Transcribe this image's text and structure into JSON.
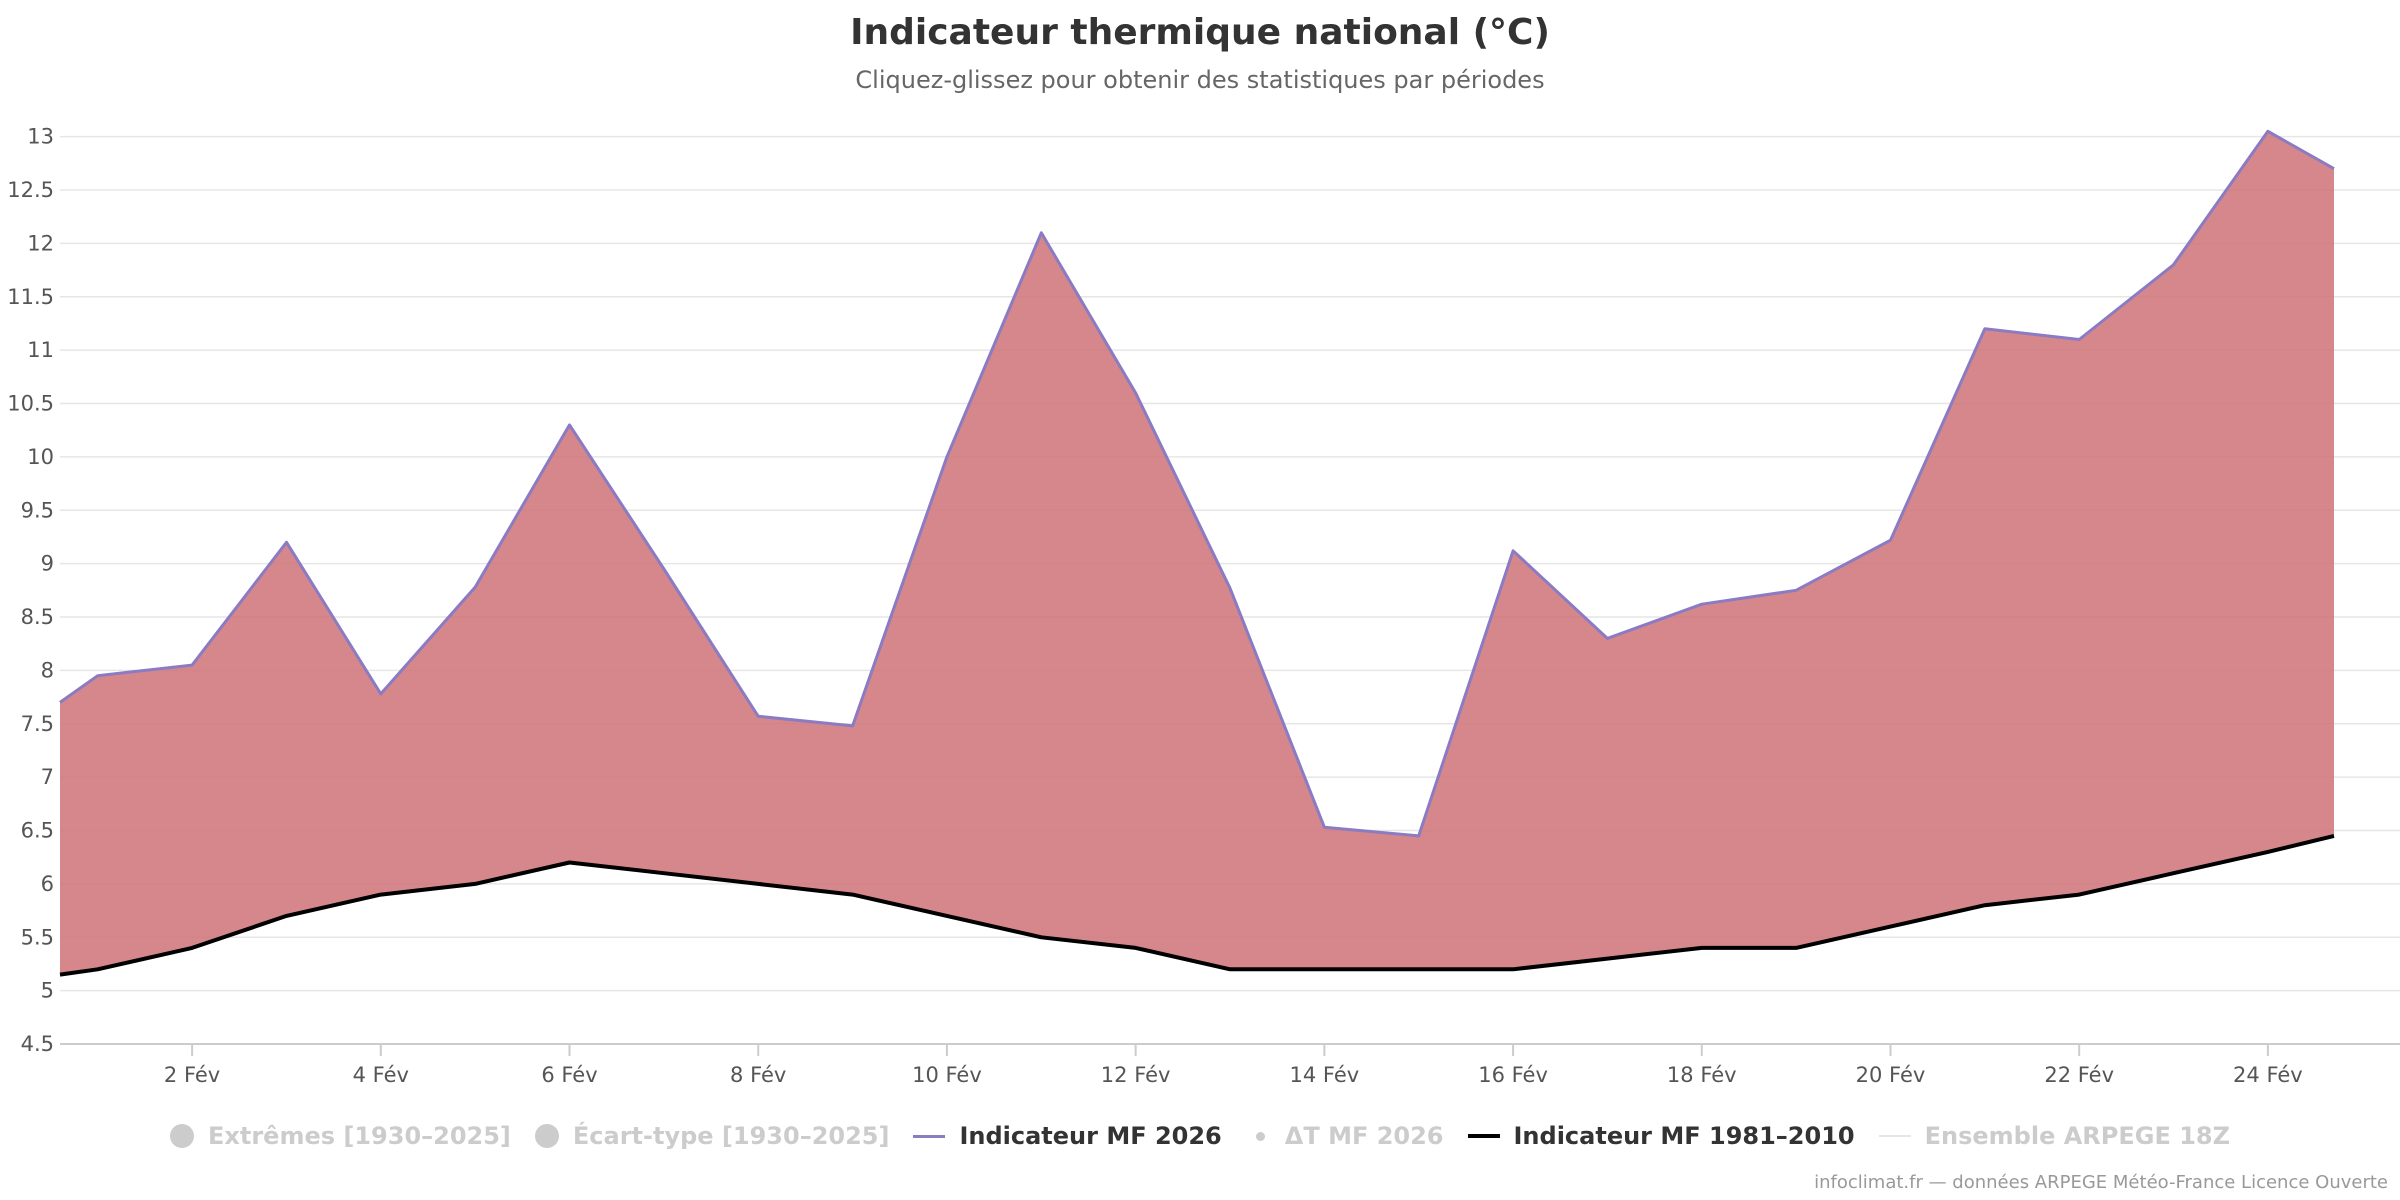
{
  "title": "Indicateur thermique national (°C)",
  "subtitle": "Cliquez-glissez pour obtenir des statistiques par périodes",
  "credits": "infoclimat.fr — données ARPEGE Météo-France Licence Ouverte",
  "colors": {
    "area_fill": "#cf7378",
    "mf2026_line": "#8a7bc2",
    "mf1981_line": "#000000",
    "grid": "#e6e6e6",
    "hidden_legend": "#cccccc"
  },
  "legend": [
    {
      "label": "Extrêmes [1930–2025]",
      "symbol": "circle",
      "state": "hidden"
    },
    {
      "label": "Écart-type [1930–2025]",
      "symbol": "circle",
      "state": "hidden"
    },
    {
      "label": "Indicateur MF 2026",
      "symbol": "line-purple",
      "state": "visible"
    },
    {
      "label": "ΔT MF 2026",
      "symbol": "dot",
      "state": "hidden"
    },
    {
      "label": "Indicateur MF 1981–2010",
      "symbol": "line-black",
      "state": "visible"
    },
    {
      "label": "Ensemble ARPEGE 18Z",
      "symbol": "line-light",
      "state": "hidden"
    }
  ],
  "chart_data": {
    "type": "area",
    "title": "Indicateur thermique national (°C)",
    "xlabel": "",
    "ylabel": "",
    "xlim": [
      0.6,
      25.4
    ],
    "ylim": [
      4.5,
      13.25
    ],
    "y_ticks": [
      4.5,
      5,
      5.5,
      6,
      6.5,
      7,
      7.5,
      8,
      8.5,
      9,
      9.5,
      10,
      10.5,
      11,
      11.5,
      12,
      12.5,
      13
    ],
    "y_tick_labels": [
      "4.5",
      "5",
      "5.5",
      "6",
      "6.5",
      "7",
      "7.5",
      "8",
      "8.5",
      "9",
      "9.5",
      "10",
      "10.5",
      "11",
      "11.5",
      "12",
      "12.5",
      "13"
    ],
    "x_ticks": [
      2,
      4,
      6,
      8,
      10,
      12,
      14,
      16,
      18,
      20,
      22,
      24
    ],
    "x_tick_labels": [
      "2 Fév",
      "4 Fév",
      "6 Fév",
      "8 Fév",
      "10 Fév",
      "12 Fév",
      "14 Fév",
      "16 Fév",
      "18 Fév",
      "20 Fév",
      "22 Fév",
      "24 Fév"
    ],
    "grid": true,
    "series": [
      {
        "name": "Indicateur MF 2026",
        "x": [
          0.6,
          1,
          2,
          3,
          4,
          5,
          6,
          7,
          8,
          9,
          10,
          11,
          12,
          13,
          14,
          15,
          16,
          17,
          18,
          19,
          20,
          21,
          22,
          23,
          24,
          24.7
        ],
        "values": [
          7.7,
          7.95,
          8.05,
          9.2,
          7.78,
          8.78,
          10.3,
          8.95,
          7.57,
          7.48,
          10.0,
          12.1,
          10.6,
          8.77,
          6.53,
          6.45,
          9.12,
          8.3,
          8.62,
          8.75,
          9.22,
          11.2,
          11.1,
          11.8,
          13.05,
          12.7
        ]
      },
      {
        "name": "Indicateur MF 1981–2010",
        "x": [
          0.6,
          1,
          2,
          3,
          4,
          5,
          6,
          7,
          8,
          9,
          10,
          11,
          12,
          13,
          14,
          15,
          16,
          17,
          18,
          19,
          20,
          21,
          22,
          23,
          24,
          24.7
        ],
        "values": [
          5.15,
          5.2,
          5.4,
          5.7,
          5.9,
          6.0,
          6.2,
          6.1,
          6.0,
          5.9,
          5.7,
          5.5,
          5.4,
          5.2,
          5.2,
          5.2,
          5.2,
          5.3,
          5.4,
          5.4,
          5.6,
          5.8,
          5.9,
          6.1,
          6.3,
          6.45
        ]
      }
    ]
  }
}
